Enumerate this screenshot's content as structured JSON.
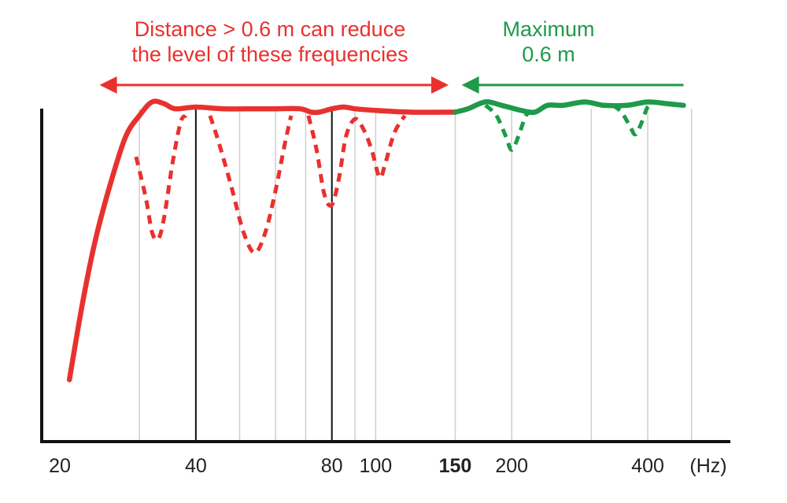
{
  "chart_data": {
    "type": "line",
    "x_scale": "log",
    "x_unit": "(Hz)",
    "x_range": [
      20,
      520
    ],
    "y_range": [
      0,
      1
    ],
    "grid": true,
    "x_ticks": [
      {
        "value": 20,
        "label": "20"
      },
      {
        "value": 40,
        "label": "40"
      },
      {
        "value": 80,
        "label": "80"
      },
      {
        "value": 100,
        "label": "100"
      },
      {
        "value": 150,
        "label": "150",
        "highlight": true
      },
      {
        "value": 200,
        "label": "200"
      },
      {
        "value": 400,
        "label": "400"
      }
    ],
    "grid_lines": [
      30,
      50,
      60,
      70,
      90,
      200,
      300,
      400,
      500
    ],
    "major_lines": [
      40,
      80
    ],
    "split_frequency": 150,
    "annotations": {
      "left": {
        "lines": [
          "Distance > 0.6 m can reduce",
          "the level of these frequencies"
        ],
        "from": 24.5,
        "to": 145
      },
      "right": {
        "lines": [
          "Maximum",
          "0.6 m"
        ],
        "from": 155,
        "to": 480
      }
    },
    "series": [
      {
        "style": "solid",
        "color": "#e8312e",
        "points": [
          [
            21.0,
            0.13
          ],
          [
            22.5,
            0.36
          ],
          [
            24,
            0.54
          ],
          [
            26,
            0.71
          ],
          [
            28,
            0.84
          ],
          [
            30,
            0.9
          ],
          [
            32,
            0.94
          ],
          [
            34,
            0.935
          ],
          [
            36,
            0.92
          ],
          [
            40,
            0.925
          ],
          [
            46,
            0.92
          ],
          [
            55,
            0.92
          ],
          [
            60,
            0.92
          ],
          [
            68,
            0.92
          ],
          [
            72,
            0.91
          ],
          [
            75,
            0.91
          ],
          [
            80,
            0.92
          ],
          [
            85,
            0.925
          ],
          [
            90,
            0.92
          ],
          [
            100,
            0.915
          ],
          [
            120,
            0.91
          ],
          [
            150,
            0.91
          ]
        ]
      },
      {
        "style": "solid",
        "color": "#1e9a4a",
        "points": [
          [
            150,
            0.91
          ],
          [
            160,
            0.92
          ],
          [
            175,
            0.94
          ],
          [
            190,
            0.93
          ],
          [
            210,
            0.915
          ],
          [
            225,
            0.91
          ],
          [
            240,
            0.93
          ],
          [
            260,
            0.93
          ],
          [
            290,
            0.94
          ],
          [
            320,
            0.93
          ],
          [
            360,
            0.93
          ],
          [
            400,
            0.94
          ],
          [
            440,
            0.935
          ],
          [
            480,
            0.93
          ]
        ]
      },
      {
        "style": "dashed",
        "color": "#e8312e",
        "points": [
          [
            29.5,
            0.78
          ],
          [
            31,
            0.66
          ],
          [
            32,
            0.56
          ],
          [
            33,
            0.54
          ],
          [
            34,
            0.6
          ],
          [
            35.5,
            0.76
          ],
          [
            37,
            0.88
          ],
          [
            38,
            0.9
          ]
        ],
        "points_b": [
          [
            43,
            0.9
          ],
          [
            45,
            0.82
          ],
          [
            48,
            0.69
          ],
          [
            51,
            0.56
          ],
          [
            54,
            0.5
          ],
          [
            57,
            0.56
          ],
          [
            60,
            0.68
          ],
          [
            63,
            0.82
          ],
          [
            65,
            0.9
          ]
        ],
        "points_c": [
          [
            71,
            0.9
          ],
          [
            74,
            0.8
          ],
          [
            77,
            0.67
          ],
          [
            80,
            0.64
          ],
          [
            83,
            0.72
          ],
          [
            86,
            0.84
          ],
          [
            90,
            0.89
          ],
          [
            94,
            0.86
          ],
          [
            98,
            0.8
          ],
          [
            102,
            0.72
          ],
          [
            105,
            0.76
          ],
          [
            110,
            0.85
          ],
          [
            116,
            0.9
          ]
        ]
      },
      {
        "style": "dashed",
        "color": "#1e9a4a",
        "points": [
          [
            175,
            0.93
          ],
          [
            185,
            0.9
          ],
          [
            194,
            0.84
          ],
          [
            200,
            0.8
          ],
          [
            207,
            0.84
          ],
          [
            215,
            0.9
          ],
          [
            222,
            0.91
          ]
        ],
        "points_b": [
          [
            335,
            0.93
          ],
          [
            350,
            0.91
          ],
          [
            365,
            0.87
          ],
          [
            375,
            0.845
          ],
          [
            385,
            0.87
          ],
          [
            398,
            0.92
          ],
          [
            405,
            0.93
          ]
        ]
      }
    ]
  },
  "colors": {
    "red": "#e8312e",
    "green": "#1e9a4a",
    "axis": "#111111",
    "grid": "#cfcfcf"
  }
}
